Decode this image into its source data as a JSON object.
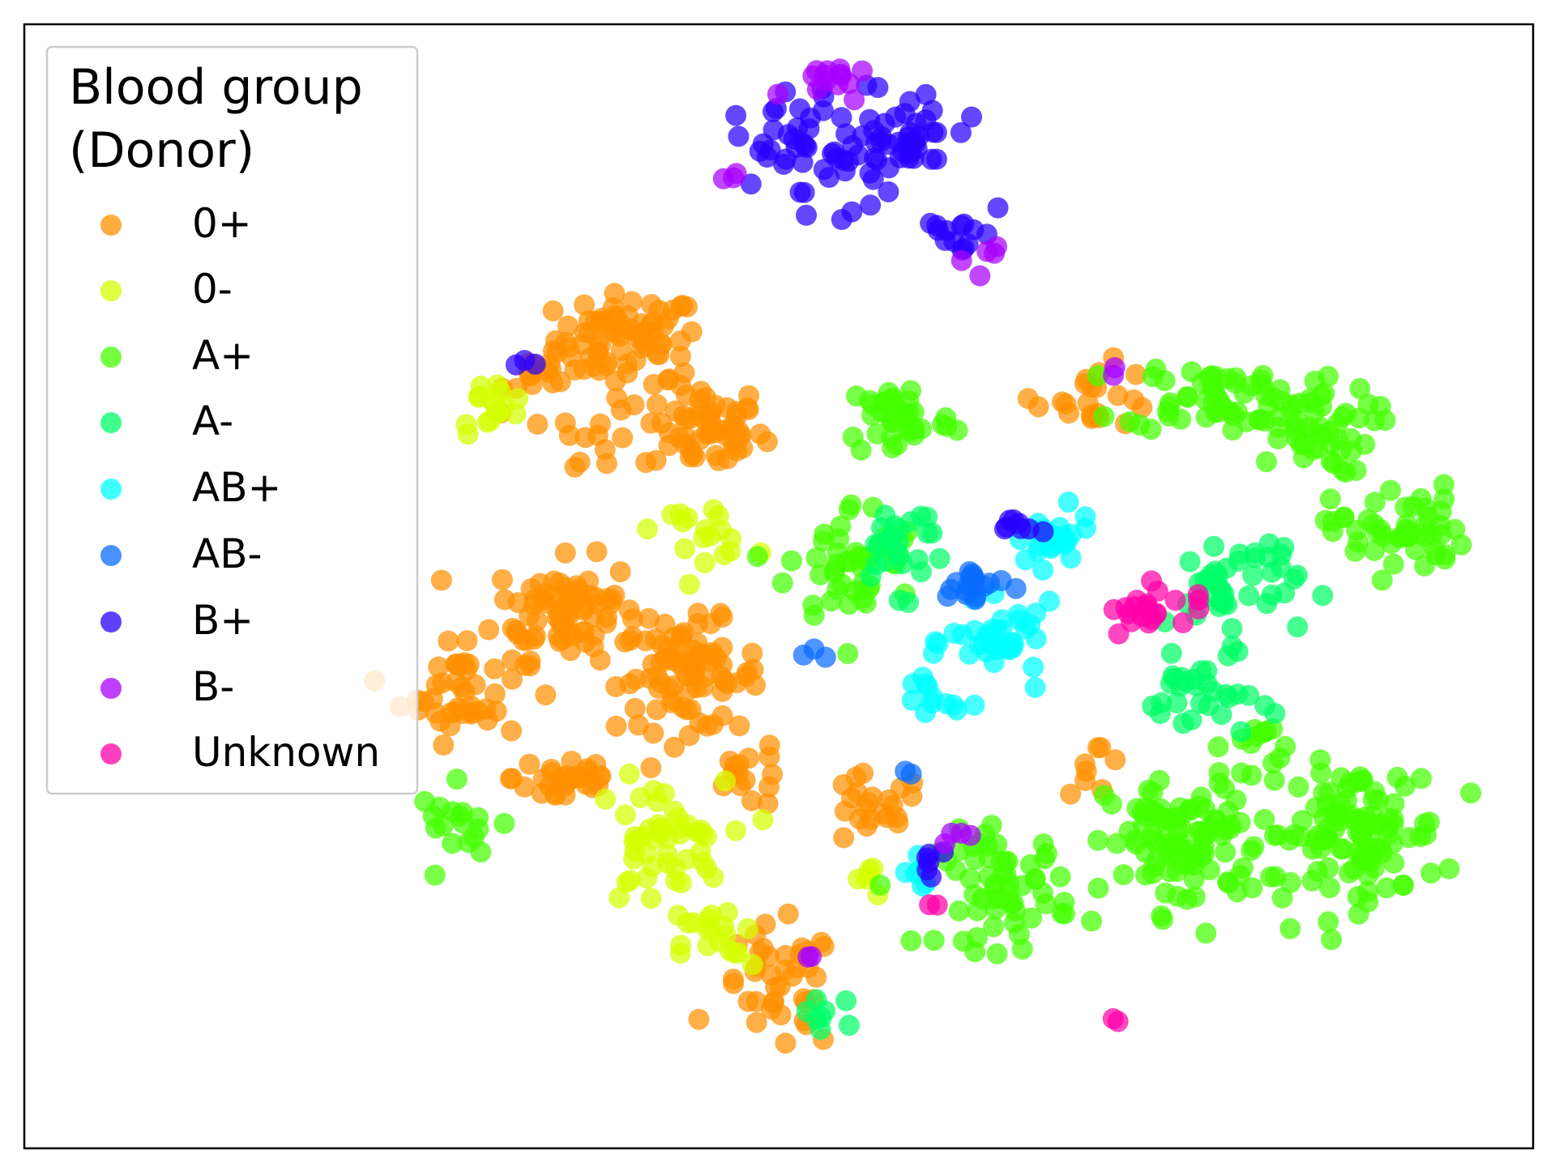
{
  "chart_data": {
    "type": "scatter",
    "title": "",
    "xlabel": "",
    "ylabel": "",
    "xticks": [],
    "yticks": [],
    "grid": false,
    "xlim": [
      0,
      100
    ],
    "ylim": [
      0,
      100
    ],
    "legend": {
      "title_lines": [
        "Blood group",
        "(Donor)"
      ],
      "placement": "top-left",
      "entries": [
        {
          "label": "0+",
          "color": "#ff9000"
        },
        {
          "label": "0-",
          "color": "#d4ff00"
        },
        {
          "label": "A+",
          "color": "#44ff00"
        },
        {
          "label": "A-",
          "color": "#00ff66"
        },
        {
          "label": "AB+",
          "color": "#00ffff"
        },
        {
          "label": "AB-",
          "color": "#0a6cff"
        },
        {
          "label": "B+",
          "color": "#2800ff"
        },
        {
          "label": "B-",
          "color": "#a800ff"
        },
        {
          "label": "Unknown",
          "color": "#ff00a8"
        }
      ]
    },
    "series": [
      {
        "name": "0+",
        "color": "#ff9000",
        "clusters": [
          {
            "x": 40,
            "y": 72,
            "sx": 2.4,
            "sy": 2.0,
            "n": 70
          },
          {
            "x": 45,
            "y": 64,
            "sx": 2.0,
            "sy": 2.0,
            "n": 60
          },
          {
            "x": 36,
            "y": 48,
            "sx": 2.4,
            "sy": 2.2,
            "n": 80
          },
          {
            "x": 29,
            "y": 41,
            "sx": 2.0,
            "sy": 2.4,
            "n": 45
          },
          {
            "x": 44,
            "y": 42,
            "sx": 2.4,
            "sy": 2.4,
            "n": 80
          },
          {
            "x": 36,
            "y": 33,
            "sx": 1.8,
            "sy": 1.4,
            "n": 30
          },
          {
            "x": 48,
            "y": 33,
            "sx": 1.4,
            "sy": 1.4,
            "n": 15
          },
          {
            "x": 56,
            "y": 30,
            "sx": 1.8,
            "sy": 1.6,
            "n": 22
          },
          {
            "x": 50,
            "y": 14,
            "sx": 2.0,
            "sy": 2.8,
            "n": 40
          },
          {
            "x": 35,
            "y": 69,
            "sx": 1.5,
            "sy": 1.4,
            "n": 18
          },
          {
            "x": 38,
            "y": 63,
            "sx": 1.4,
            "sy": 1.4,
            "n": 12
          },
          {
            "x": 71,
            "y": 67,
            "sx": 2.0,
            "sy": 1.4,
            "n": 22
          },
          {
            "x": 71,
            "y": 34,
            "sx": 1.0,
            "sy": 1.2,
            "n": 8
          }
        ]
      },
      {
        "name": "0-",
        "color": "#d4ff00",
        "clusters": [
          {
            "x": 31,
            "y": 66,
            "sx": 1.2,
            "sy": 1.2,
            "n": 16
          },
          {
            "x": 45,
            "y": 55,
            "sx": 1.6,
            "sy": 1.2,
            "n": 18
          },
          {
            "x": 42,
            "y": 27,
            "sx": 2.2,
            "sy": 2.8,
            "n": 50
          },
          {
            "x": 46,
            "y": 18,
            "sx": 1.2,
            "sy": 1.8,
            "n": 18
          },
          {
            "x": 56,
            "y": 24,
            "sx": 0.8,
            "sy": 0.8,
            "n": 6
          }
        ]
      },
      {
        "name": "A+",
        "color": "#44ff00",
        "clusters": [
          {
            "x": 58,
            "y": 65,
            "sx": 1.8,
            "sy": 1.8,
            "n": 40
          },
          {
            "x": 55,
            "y": 52,
            "sx": 2.2,
            "sy": 2.8,
            "n": 50
          },
          {
            "x": 79,
            "y": 67,
            "sx": 3.0,
            "sy": 1.6,
            "n": 50
          },
          {
            "x": 85,
            "y": 64,
            "sx": 2.2,
            "sy": 2.0,
            "n": 50
          },
          {
            "x": 91,
            "y": 55,
            "sx": 2.2,
            "sy": 2.0,
            "n": 50
          },
          {
            "x": 77,
            "y": 27,
            "sx": 2.6,
            "sy": 3.0,
            "n": 100
          },
          {
            "x": 88,
            "y": 28,
            "sx": 3.0,
            "sy": 3.0,
            "n": 110
          },
          {
            "x": 65,
            "y": 23,
            "sx": 2.2,
            "sy": 2.6,
            "n": 60
          },
          {
            "x": 29,
            "y": 29,
            "sx": 1.4,
            "sy": 1.6,
            "n": 18
          },
          {
            "x": 82,
            "y": 36,
            "sx": 1.2,
            "sy": 1.2,
            "n": 12
          }
        ]
      },
      {
        "name": "A-",
        "color": "#00ff66",
        "clusters": [
          {
            "x": 80,
            "y": 50,
            "sx": 2.2,
            "sy": 2.6,
            "n": 45
          },
          {
            "x": 78,
            "y": 40,
            "sx": 1.8,
            "sy": 1.8,
            "n": 30
          },
          {
            "x": 58,
            "y": 54,
            "sx": 1.6,
            "sy": 2.2,
            "n": 25
          },
          {
            "x": 53,
            "y": 12,
            "sx": 1.0,
            "sy": 1.0,
            "n": 8
          }
        ]
      },
      {
        "name": "AB+",
        "color": "#00ffff",
        "clusters": [
          {
            "x": 65,
            "y": 45,
            "sx": 1.8,
            "sy": 1.6,
            "n": 35
          },
          {
            "x": 68,
            "y": 54,
            "sx": 1.4,
            "sy": 1.2,
            "n": 25
          },
          {
            "x": 60,
            "y": 40,
            "sx": 1.0,
            "sy": 1.4,
            "n": 12
          },
          {
            "x": 59,
            "y": 24,
            "sx": 0.8,
            "sy": 0.8,
            "n": 6
          }
        ]
      },
      {
        "name": "AB-",
        "color": "#0a6cff",
        "clusters": [
          {
            "x": 63,
            "y": 50,
            "sx": 1.2,
            "sy": 1.0,
            "n": 18
          },
          {
            "x": 53,
            "y": 44,
            "sx": 0.6,
            "sy": 0.6,
            "n": 3
          },
          {
            "x": 59,
            "y": 34,
            "sx": 0.5,
            "sy": 0.5,
            "n": 2
          }
        ]
      },
      {
        "name": "B+",
        "color": "#2800ff",
        "clusters": [
          {
            "x": 54,
            "y": 88,
            "sx": 2.4,
            "sy": 2.4,
            "n": 40
          },
          {
            "x": 59,
            "y": 91,
            "sx": 2.0,
            "sy": 2.0,
            "n": 30
          },
          {
            "x": 50,
            "y": 90,
            "sx": 1.6,
            "sy": 1.6,
            "n": 18
          },
          {
            "x": 62,
            "y": 82,
            "sx": 1.2,
            "sy": 1.4,
            "n": 14
          },
          {
            "x": 66,
            "y": 55,
            "sx": 1.2,
            "sy": 0.6,
            "n": 8
          },
          {
            "x": 60,
            "y": 26,
            "sx": 0.8,
            "sy": 0.8,
            "n": 6
          },
          {
            "x": 33,
            "y": 70,
            "sx": 0.4,
            "sy": 0.4,
            "n": 3
          }
        ]
      },
      {
        "name": "B-",
        "color": "#a800ff",
        "clusters": [
          {
            "x": 53,
            "y": 95,
            "sx": 1.2,
            "sy": 0.8,
            "n": 14
          },
          {
            "x": 46,
            "y": 86,
            "sx": 0.6,
            "sy": 0.6,
            "n": 3
          },
          {
            "x": 64,
            "y": 79,
            "sx": 0.8,
            "sy": 0.8,
            "n": 5
          },
          {
            "x": 72,
            "y": 69,
            "sx": 0.4,
            "sy": 0.4,
            "n": 2
          },
          {
            "x": 61,
            "y": 28,
            "sx": 0.6,
            "sy": 0.6,
            "n": 4
          },
          {
            "x": 52,
            "y": 17,
            "sx": 0.4,
            "sy": 0.4,
            "n": 2
          }
        ]
      },
      {
        "name": "Unknown",
        "color": "#ff00a8",
        "clusters": [
          {
            "x": 74,
            "y": 48,
            "sx": 1.0,
            "sy": 1.2,
            "n": 18
          },
          {
            "x": 77,
            "y": 48,
            "sx": 0.6,
            "sy": 0.6,
            "n": 4
          },
          {
            "x": 60,
            "y": 22,
            "sx": 0.4,
            "sy": 0.4,
            "n": 2
          },
          {
            "x": 72,
            "y": 11,
            "sx": 0.3,
            "sy": 0.3,
            "n": 2
          }
        ]
      }
    ]
  }
}
